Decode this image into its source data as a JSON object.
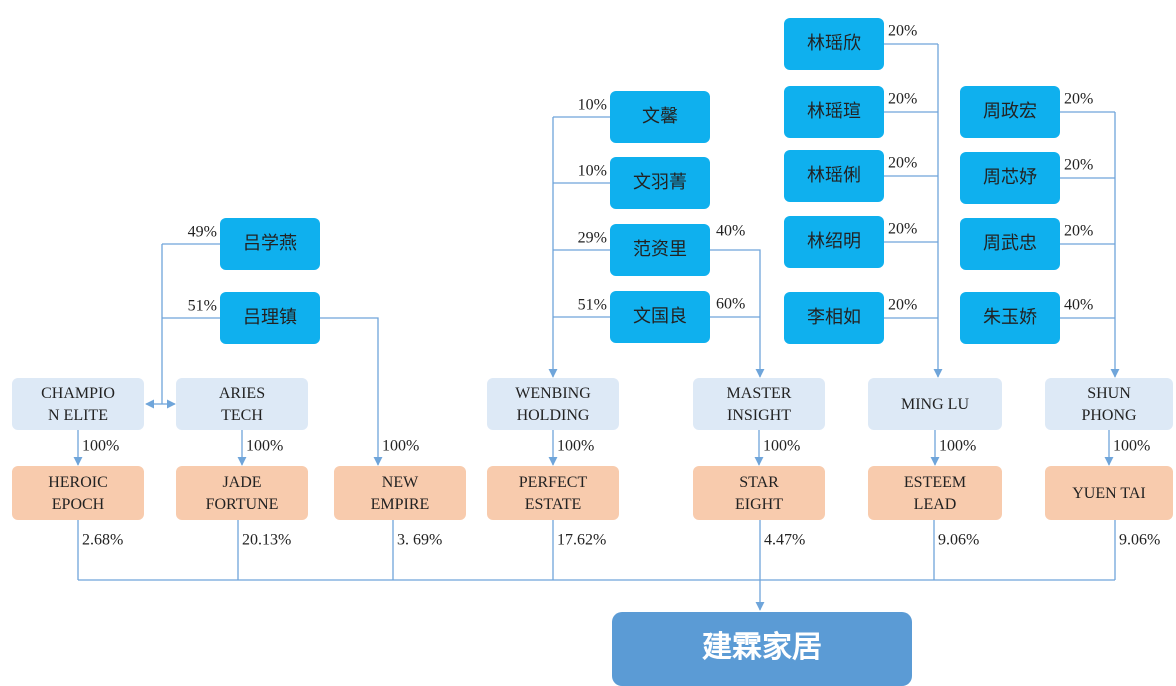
{
  "persons": [
    "吕学燕",
    "吕理镇",
    "文馨",
    "文羽菁",
    "范资里",
    "文国良",
    "林瑶欣",
    "林瑶瑄",
    "林瑶俐",
    "林绍明",
    "李相如",
    "周政宏",
    "周芯妤",
    "周武忠",
    "朱玉娇"
  ],
  "person_shares": [
    "49%",
    "51%",
    "10%",
    "10%",
    "29%",
    "51%",
    "20%",
    "20%",
    "20%",
    "20%",
    "20%",
    "20%",
    "20%",
    "20%",
    "40%"
  ],
  "cross_shares": [
    "40%",
    "60%"
  ],
  "holdings": [
    [
      "CHAMPIO",
      "N ELITE"
    ],
    [
      "ARIES",
      "TECH"
    ],
    [
      "WENBING",
      "HOLDING"
    ],
    [
      "MASTER",
      "INSIGHT"
    ],
    [
      "MING LU"
    ],
    [
      "SHUN",
      "PHONG"
    ]
  ],
  "entities": [
    [
      "HEROIC",
      "EPOCH"
    ],
    [
      "JADE",
      "FORTUNE"
    ],
    [
      "NEW",
      "EMPIRE"
    ],
    [
      "PERFECT",
      "ESTATE"
    ],
    [
      "STAR",
      "EIGHT"
    ],
    [
      "ESTEEM",
      "LEAD"
    ],
    [
      "YUEN TAI"
    ]
  ],
  "entity_shares": [
    "100%",
    "100%",
    "100%",
    "100%",
    "100%",
    "100%",
    "100%"
  ],
  "final_shares": [
    "2.68%",
    "20.13%",
    "3. 69%",
    "17.62%",
    "4.47%",
    "9.06%",
    "9.06%"
  ],
  "target": "建霖家居"
}
